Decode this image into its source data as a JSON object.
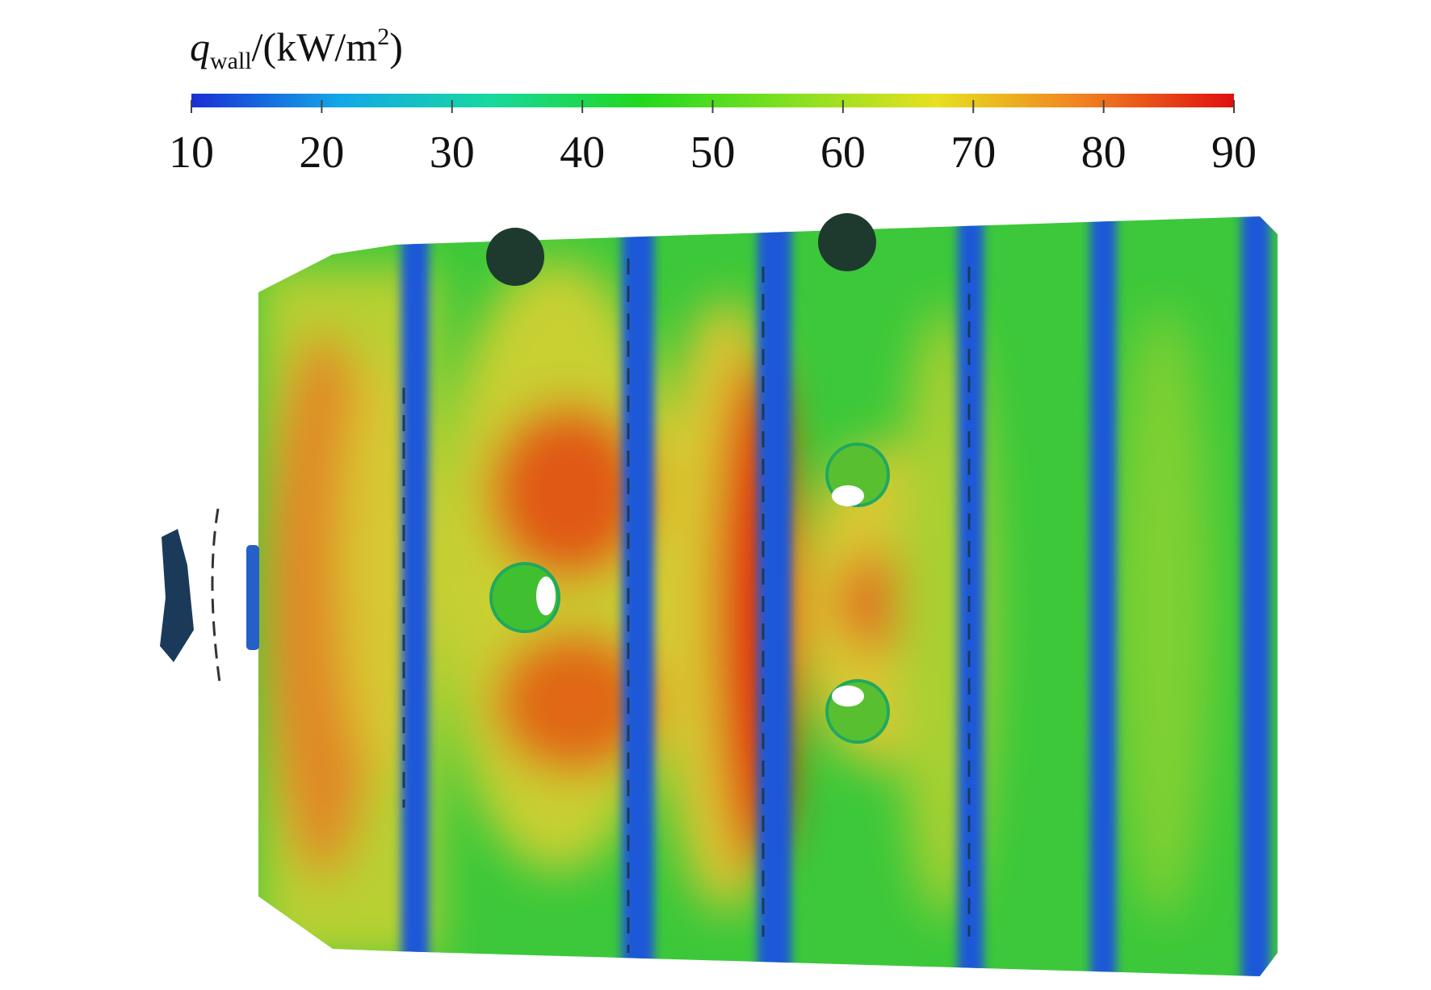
{
  "colorbar": {
    "label": {
      "symbol": "q",
      "subscript": "wall",
      "unit_start": "/(kW/m",
      "superscript": "2",
      "unit_end": ")"
    },
    "range": [
      10,
      90
    ],
    "ticks": [
      10,
      20,
      30,
      40,
      50,
      60,
      70,
      80,
      90
    ],
    "colors": [
      "#1a2fd6",
      "#12a8e8",
      "#18d8a0",
      "#20d820",
      "#80e020",
      "#e8e020",
      "#f08020",
      "#e01010"
    ]
  }
}
